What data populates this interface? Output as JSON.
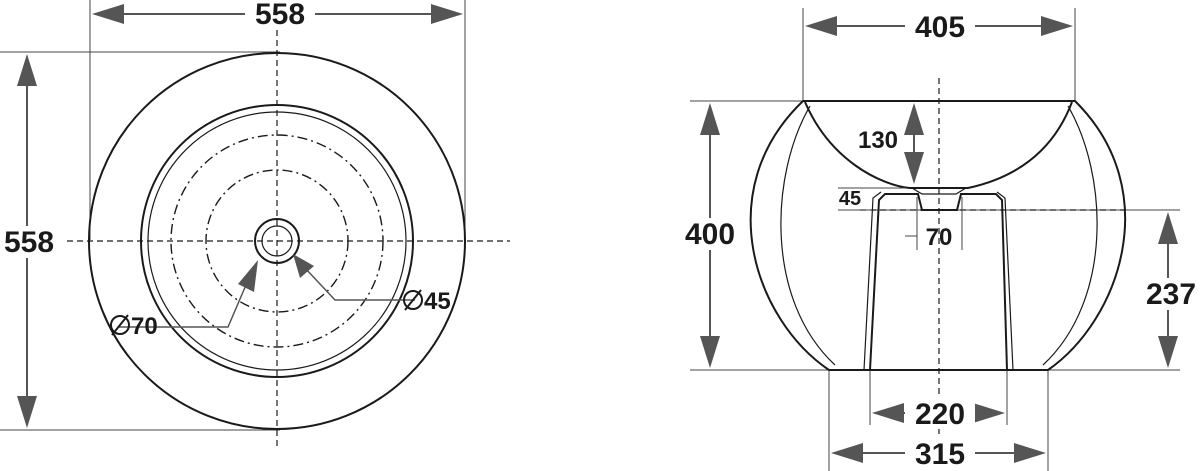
{
  "top_view": {
    "width_label": "558",
    "height_label": "558",
    "drain_label": "70",
    "overflow_label": "45"
  },
  "side_view": {
    "top_width_label": "405",
    "height_label": "400",
    "bowl_depth_label": "130",
    "drain_offset_label": "45",
    "drain_width_label": "70",
    "pedestal_height_label": "237",
    "pedestal_top_label": "220",
    "base_width_label": "315"
  },
  "symbols": {
    "diameter": "⌀"
  }
}
